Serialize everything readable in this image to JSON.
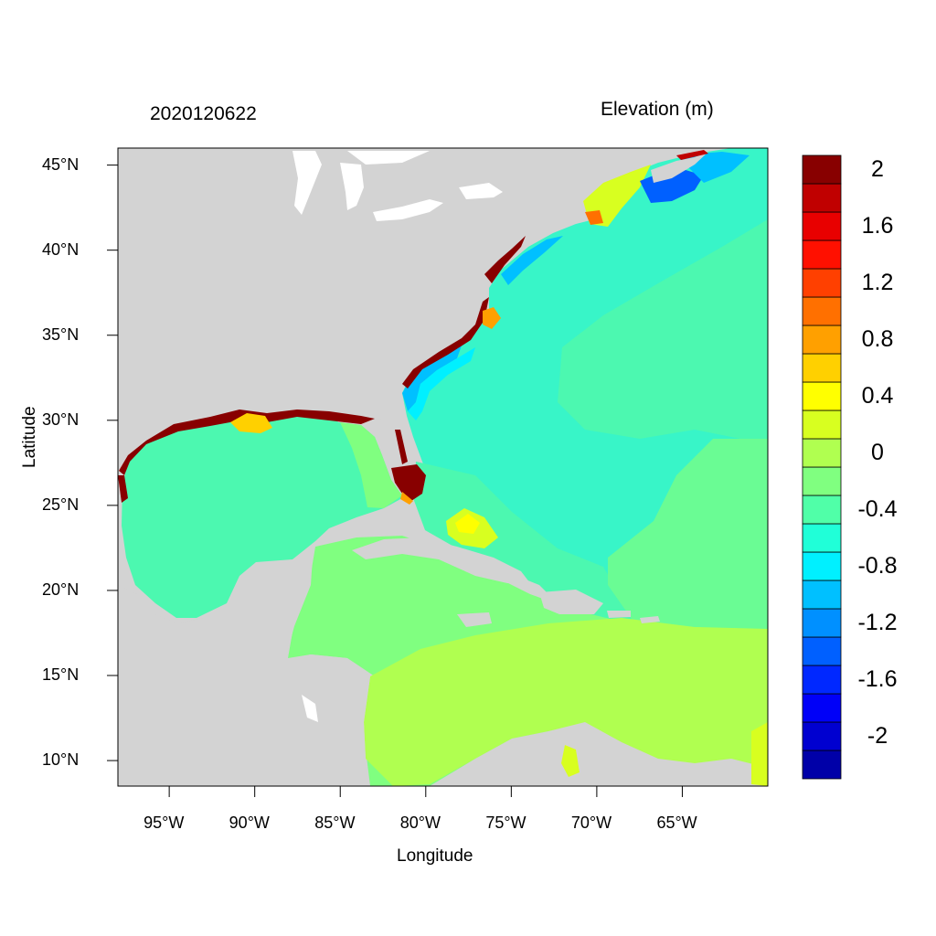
{
  "map": {
    "left_title": "2020120622",
    "right_title": "Elevation (m)",
    "xlabel": "Longitude",
    "ylabel": "Latitude",
    "extent": {
      "lon": [
        -98,
        -60
      ],
      "lat": [
        8.5,
        46
      ]
    },
    "lon_ticks": [
      {
        "value": -95,
        "label": "95°W"
      },
      {
        "value": -90,
        "label": "90°W"
      },
      {
        "value": -85,
        "label": "85°W"
      },
      {
        "value": -80,
        "label": "80°W"
      },
      {
        "value": -75,
        "label": "75°W"
      },
      {
        "value": -70,
        "label": "70°W"
      },
      {
        "value": -65,
        "label": "65°W"
      }
    ],
    "lat_ticks": [
      {
        "value": 45,
        "label": "45°N"
      },
      {
        "value": 40,
        "label": "40°N"
      },
      {
        "value": 35,
        "label": "35°N"
      },
      {
        "value": 30,
        "label": "30°N"
      },
      {
        "value": 25,
        "label": "25°N"
      },
      {
        "value": 20,
        "label": "20°N"
      },
      {
        "value": 15,
        "label": "15°N"
      },
      {
        "value": 10,
        "label": "10°N"
      }
    ],
    "land_color": "#d3d3d3",
    "water_color": "#ffffff"
  },
  "colorbar": {
    "colors": [
      "#0000a8",
      "#0000d0",
      "#0000f8",
      "#0028ff",
      "#0060ff",
      "#0090ff",
      "#00c0ff",
      "#00f0ff",
      "#20ffd8",
      "#50ffa8",
      "#80ff80",
      "#b0ff50",
      "#d8ff20",
      "#ffff00",
      "#ffd000",
      "#ffa000",
      "#ff7000",
      "#ff4000",
      "#ff1000",
      "#e80000",
      "#c00000",
      "#880000"
    ],
    "labels": [
      {
        "index": 1,
        "text": "-2"
      },
      {
        "index": 3,
        "text": "-1.6"
      },
      {
        "index": 5,
        "text": "-1.2"
      },
      {
        "index": 7,
        "text": "-0.8"
      },
      {
        "index": 9,
        "text": "-0.4"
      },
      {
        "index": 11,
        "text": "0"
      },
      {
        "index": 13,
        "text": "0.4"
      },
      {
        "index": 15,
        "text": "0.8"
      },
      {
        "index": 17,
        "text": "1.2"
      },
      {
        "index": 19,
        "text": "1.6"
      },
      {
        "index": 21,
        "text": "2"
      }
    ]
  }
}
